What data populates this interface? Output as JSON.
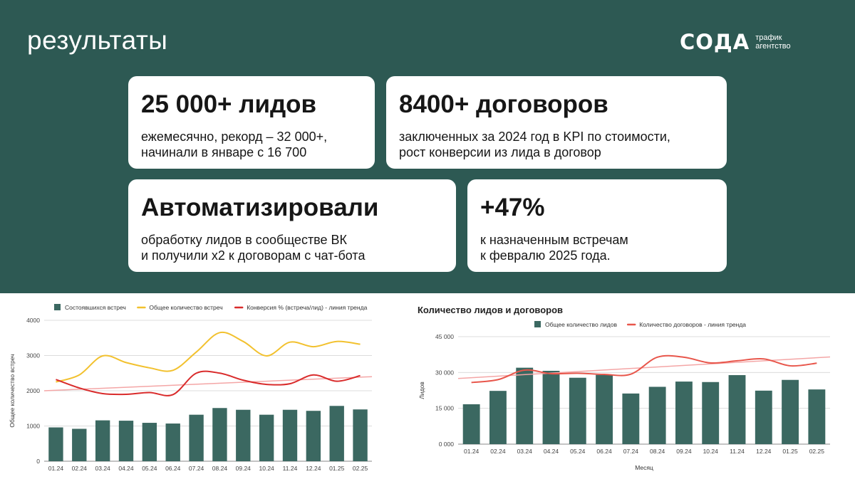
{
  "header": {
    "title": "результаты"
  },
  "logo": {
    "word": "СОДА",
    "sub_line1": "трафик",
    "sub_line2": "агентство"
  },
  "cards": [
    {
      "headline": "25 000+ лидов",
      "text": "ежемесячно, рекорд – 32 000+,\nначинали в январе с 16 700"
    },
    {
      "headline": "8400+ договоров",
      "text": "заключенных за 2024 год в KPI по стоимости,\nрост конверсии из лида в договор"
    },
    {
      "headline": "Автоматизировали",
      "text": "обработку лидов в сообществе ВК\nи получили x2 к договорам с чат-бота"
    },
    {
      "headline": "+47%",
      "text": "к назначенным встречам\nк февралю 2025 года."
    }
  ],
  "colors": {
    "bg_dark": "#2d5953",
    "bar": "#3b6861",
    "yellow": "#f2c12e",
    "red": "#d92b2b",
    "trend": "#f4a6a6",
    "orange_red": "#e8564b"
  },
  "chart_data": [
    {
      "type": "bar",
      "title": "",
      "categories": [
        "01.24",
        "02.24",
        "03.24",
        "04.24",
        "05.24",
        "06.24",
        "07.24",
        "08.24",
        "09.24",
        "10.24",
        "11.24",
        "12.24",
        "01.25",
        "02.25"
      ],
      "ylabel": "Общее количество встреч",
      "xlabel": "",
      "ylim": [
        0,
        4000
      ],
      "yticks": [
        "0",
        "1000",
        "2000",
        "3000",
        "4000"
      ],
      "legend_position": "top",
      "series": [
        {
          "name": "Состоявшихся встреч",
          "kind": "bar",
          "values": [
            960,
            920,
            1160,
            1150,
            1090,
            1070,
            1320,
            1510,
            1460,
            1320,
            1460,
            1430,
            1570,
            1470
          ]
        },
        {
          "name": "Общее количество встреч",
          "kind": "line",
          "values": [
            2250,
            2450,
            2990,
            2800,
            2650,
            2580,
            3100,
            3650,
            3400,
            2990,
            3380,
            3250,
            3400,
            3320
          ]
        },
        {
          "name": "Конверсия % (встреча/лид) - линия тренда",
          "kind": "line",
          "values": [
            2320,
            2080,
            1920,
            1900,
            1950,
            1890,
            2500,
            2500,
            2300,
            2180,
            2200,
            2450,
            2270,
            2430
          ],
          "trend": [
            2000,
            2400
          ]
        }
      ]
    },
    {
      "type": "bar",
      "title": "Количество лидов и договоров",
      "categories": [
        "01.24",
        "02.24",
        "03.24",
        "04.24",
        "05.24",
        "06.24",
        "07.24",
        "08.24",
        "09.24",
        "10.24",
        "11.24",
        "12.24",
        "01.25",
        "02.25"
      ],
      "ylabel": "Лидов",
      "xlabel": "Месяц",
      "ylim": [
        0,
        45000
      ],
      "yticks": [
        "0 000",
        "15 000",
        "30 000",
        "45 000"
      ],
      "legend_position": "top",
      "series": [
        {
          "name": "Общее количество лидов",
          "kind": "bar",
          "values": [
            16700,
            22300,
            32000,
            30700,
            27800,
            29000,
            21200,
            24000,
            26200,
            26000,
            28900,
            22400,
            26900,
            22900
          ]
        },
        {
          "name": "Количество договоров - линия тренда",
          "kind": "line",
          "values": [
            25800,
            27000,
            31000,
            29500,
            29700,
            29200,
            29300,
            36400,
            36400,
            34000,
            34900,
            35700,
            32800,
            33900
          ],
          "trend": [
            27500,
            36500
          ]
        }
      ]
    }
  ]
}
